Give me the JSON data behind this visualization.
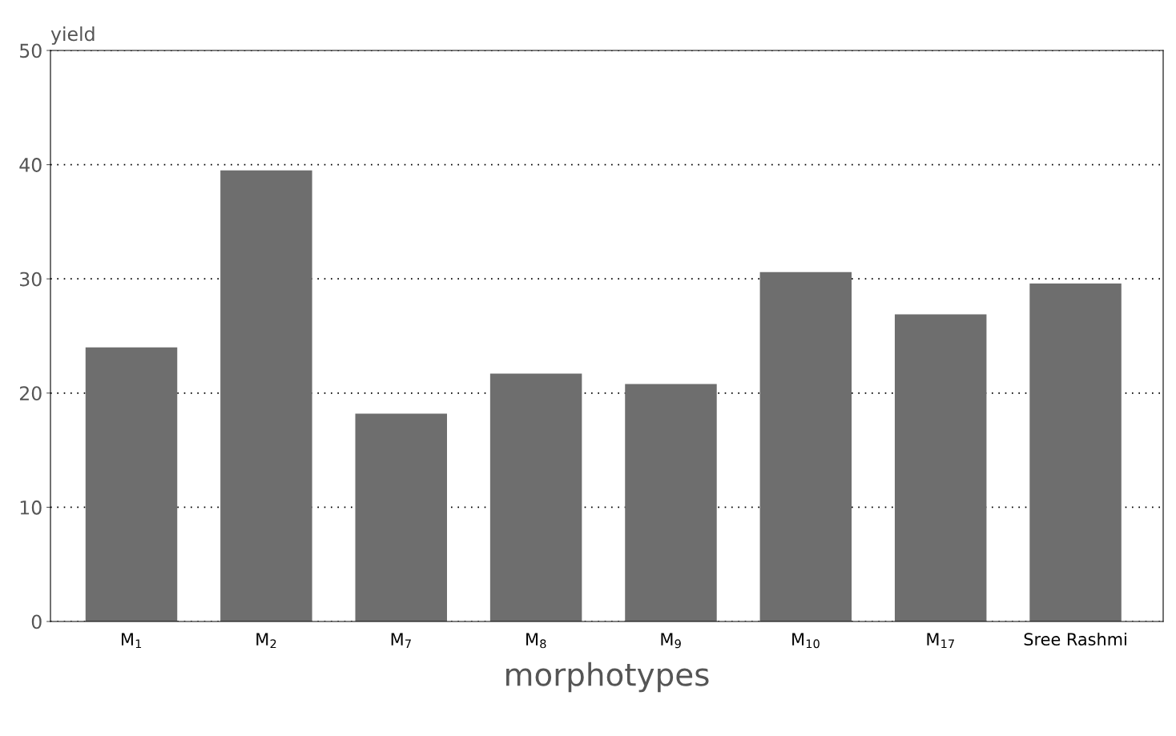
{
  "chart_data": {
    "type": "bar",
    "ylabel": "yield",
    "xlabel": "morphotypes",
    "categories": [
      "M$_{1}$",
      "M$_{2}$",
      "M$_{7}$",
      "M$_{8}$",
      "M$_{9}$",
      "M$_{10}$",
      "M$_{17}$",
      "Sree Rashmi"
    ],
    "values": [
      24.0,
      39.5,
      18.2,
      21.7,
      20.8,
      30.6,
      26.9,
      29.6
    ],
    "color": "#6e6e6e",
    "ylim": [
      0,
      50
    ],
    "yticks": [
      0,
      10,
      20,
      30,
      40,
      50
    ],
    "grid": "y"
  }
}
